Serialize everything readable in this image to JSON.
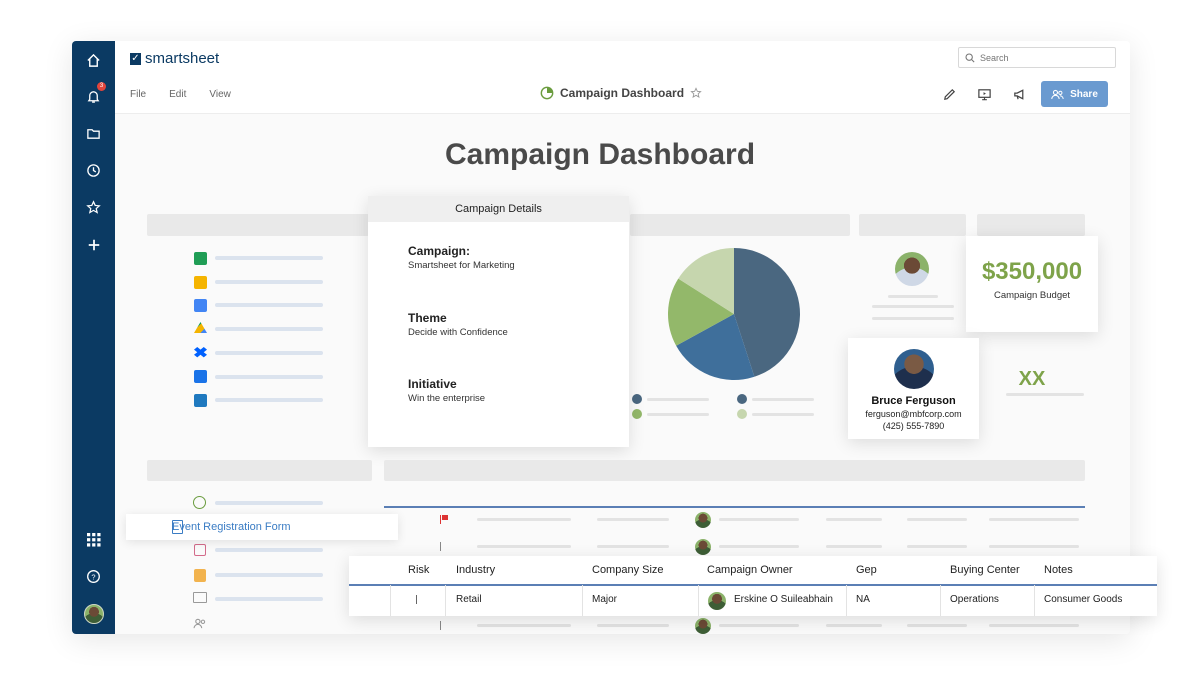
{
  "app": {
    "brand": "smartsheet",
    "notifications_count": "3",
    "menu": [
      "File",
      "Edit",
      "View"
    ],
    "sheet_title": "Campaign Dashboard",
    "search_placeholder": "Search",
    "share_label": "Share",
    "nav_icons": [
      "home-icon",
      "bell-icon",
      "folder-icon",
      "clock-icon",
      "star-icon",
      "plus-icon",
      "apps-grid-icon",
      "help-icon"
    ]
  },
  "dashboard": {
    "title": "Campaign Dashboard",
    "details": {
      "header": "Campaign Details",
      "items": [
        {
          "label": "Campaign:",
          "value": "Smartsheet for Marketing"
        },
        {
          "label": "Theme",
          "value": "Decide with Confidence"
        },
        {
          "label": "Initiative",
          "value": "Win the enterprise"
        }
      ]
    },
    "budget": {
      "amount": "$350,000",
      "label": "Campaign Budget"
    },
    "contact": {
      "name": "Bruce Ferguson",
      "email": "ferguson@mbfcorp.com",
      "phone": "(425) 555-7890"
    },
    "kpi": "XX",
    "pie_slices": [
      {
        "fraction": 0.45,
        "color": "#4a6780"
      },
      {
        "fraction": 0.22,
        "color": "#3f6f9b"
      },
      {
        "fraction": 0.17,
        "color": "#93b86a"
      },
      {
        "fraction": 0.16,
        "color": "#c6d6ae"
      }
    ],
    "event_form_label": "Event Registration Form"
  },
  "table": {
    "headers": [
      "Risk",
      "Industry",
      "Company Size",
      "Campaign Owner",
      "Gep",
      "Buying Center",
      "Notes"
    ],
    "row": {
      "industry": "Retail",
      "company_size": "Major",
      "owner": "Erskine O Suileabhain",
      "gep": "NA",
      "buying_center": "Operations",
      "notes": "Consumer Goods"
    }
  },
  "colors": {
    "nav": "#0b3a63",
    "accent_green": "#7ea34a",
    "share_button": "#6a9ad0",
    "link_blue": "#3a7cc4"
  }
}
